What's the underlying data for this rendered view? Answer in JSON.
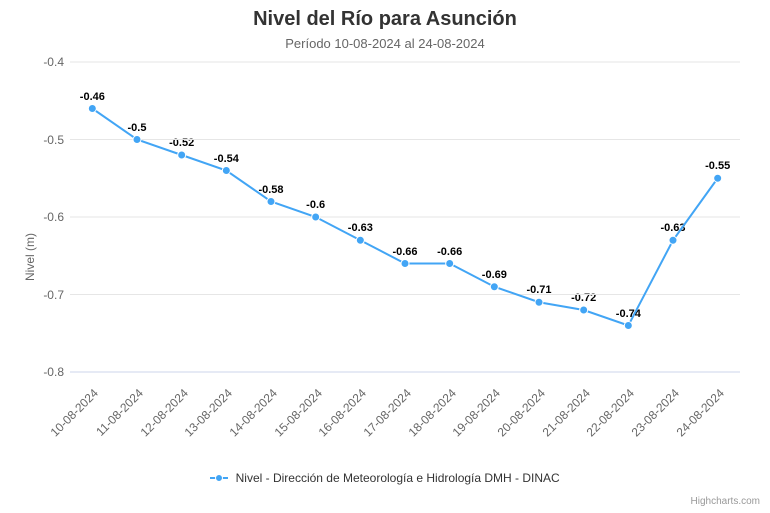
{
  "chart": {
    "type": "line",
    "title": "Nivel del Río para Asunción",
    "title_fontsize": 20,
    "title_fontweight": "bold",
    "title_color": "#333333",
    "subtitle": "Período 10-08-2024 al 24-08-2024",
    "subtitle_fontsize": 13,
    "subtitle_color": "#666666",
    "background_color": "#ffffff",
    "grid_color": "#e6e6e6",
    "font_family": "Lucida Grande, Lucida Sans Unicode, Arial, Helvetica, sans-serif",
    "legend_position": "bottom-center",
    "credit": "Highcharts.com"
  },
  "yaxis": {
    "title": "Nivel (m)",
    "title_fontsize": 12,
    "min": -0.8,
    "max": -0.4,
    "tick_step": 0.1,
    "ticks": [
      "-0.4",
      "-0.5",
      "-0.6",
      "-0.7",
      "-0.8"
    ],
    "tick_values": [
      -0.4,
      -0.5,
      -0.6,
      -0.7,
      -0.8
    ],
    "label_fontsize": 12,
    "label_color": "#666666"
  },
  "xaxis": {
    "categories": [
      "10-08-2024",
      "11-08-2024",
      "12-08-2024",
      "13-08-2024",
      "14-08-2024",
      "15-08-2024",
      "16-08-2024",
      "17-08-2024",
      "18-08-2024",
      "19-08-2024",
      "20-08-2024",
      "21-08-2024",
      "22-08-2024",
      "23-08-2024",
      "24-08-2024"
    ],
    "label_rotation": -45,
    "label_fontsize": 12,
    "label_color": "#666666"
  },
  "series": {
    "name": "Nivel - Dirección de Meteorología e Hidrología DMH - DINAC",
    "color": "#42a5f5",
    "line_width": 2,
    "marker": "circle",
    "marker_radius": 4,
    "marker_color": "#42a5f5",
    "marker_stroke": "#ffffff",
    "data": [
      -0.46,
      -0.5,
      -0.52,
      -0.54,
      -0.58,
      -0.6,
      -0.63,
      -0.66,
      -0.66,
      -0.69,
      -0.71,
      -0.72,
      -0.74,
      -0.63,
      -0.55
    ],
    "data_labels": [
      "-0.46",
      "-0.5",
      "-0.52",
      "-0.54",
      "-0.58",
      "-0.6",
      "-0.63",
      "-0.66",
      "-0.66",
      "-0.69",
      "-0.71",
      "-0.72",
      "-0.74",
      "-0.63",
      "-0.55"
    ],
    "data_label_fontsize": 11,
    "data_label_fontweight": "bold",
    "data_label_color": "#000000"
  }
}
